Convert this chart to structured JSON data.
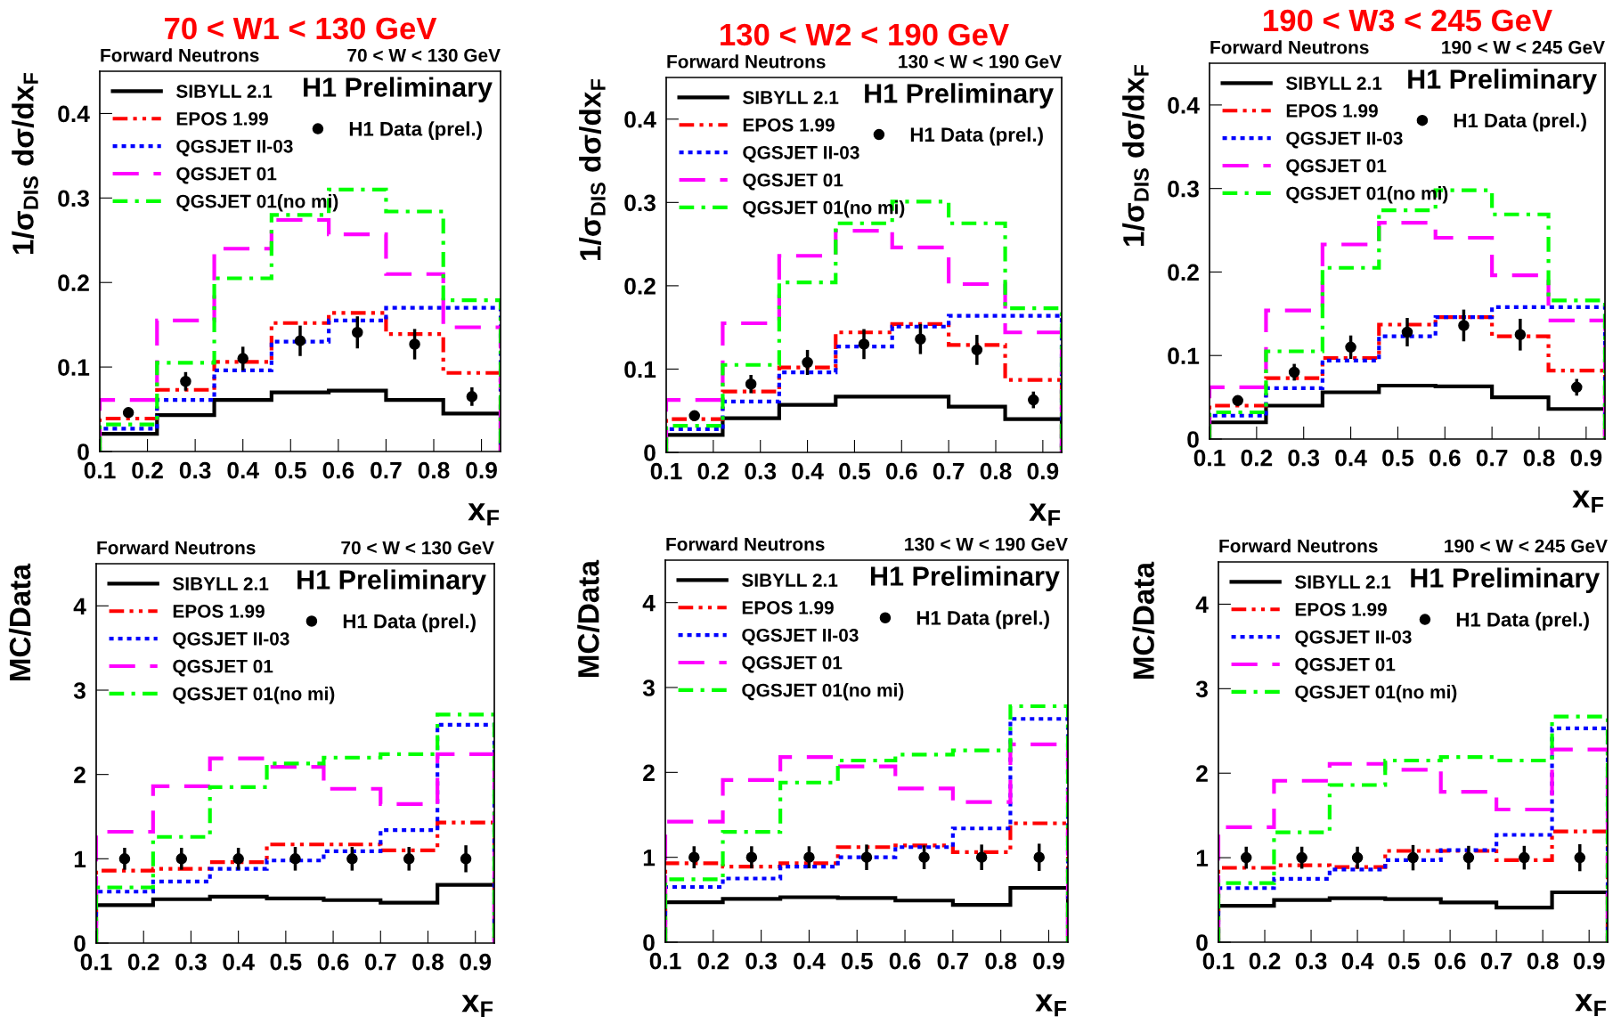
{
  "chart_data": [
    {
      "type": "histogram",
      "title": "70 < W1 < 130 GeV",
      "xlabel": "x$_{F}$",
      "ylabel": "1/σ$_{DIS}$ dσ/dx$_{F}$",
      "annotations": [
        "Forward Neutrons",
        "70 < W < 130 GeV",
        "H1 Preliminary"
      ],
      "bins": [
        0.1,
        0.22,
        0.34,
        0.46,
        0.58,
        0.7,
        0.82,
        0.94
      ],
      "xlim": [
        0.1,
        0.94
      ],
      "xticks": [
        0.1,
        0.2,
        0.3,
        0.4,
        0.5,
        0.6,
        0.7,
        0.8,
        0.9
      ],
      "ylim": [
        0,
        0.45
      ],
      "yticks": [
        0,
        0.1,
        0.2,
        0.3,
        0.4
      ],
      "legend": "top left",
      "series": [
        {
          "name": "SIBYLL 2.1",
          "color": "#000000",
          "line_style": "solid",
          "values": [
            0.021,
            0.043,
            0.061,
            0.07,
            0.072,
            0.061,
            0.045
          ]
        },
        {
          "name": "EPOS 1.99",
          "color": "#ff0000",
          "line_style": "dashdotdot",
          "values": [
            0.039,
            0.073,
            0.106,
            0.152,
            0.164,
            0.139,
            0.093
          ]
        },
        {
          "name": "QGSJET II-03",
          "color": "#0000ff",
          "line_style": "dotted",
          "values": [
            0.027,
            0.061,
            0.096,
            0.13,
            0.155,
            0.17,
            0.17
          ]
        },
        {
          "name": "QGSJET 01",
          "color": "#ff00ff",
          "line_style": "dashed",
          "values": [
            0.061,
            0.155,
            0.24,
            0.274,
            0.257,
            0.21,
            0.147
          ]
        },
        {
          "name": "QGSJET 01(no mi)",
          "color": "#00ff00",
          "line_style": "dashdot",
          "values": [
            0.032,
            0.105,
            0.205,
            0.28,
            0.31,
            0.284,
            0.179
          ]
        },
        {
          "name": "H1 Data (prel.)",
          "type": "scatter",
          "color": "#000000",
          "marker": "circle",
          "x": [
            0.16,
            0.28,
            0.4,
            0.52,
            0.64,
            0.76,
            0.88
          ],
          "values": [
            0.046,
            0.083,
            0.11,
            0.131,
            0.141,
            0.127,
            0.065
          ],
          "errors": [
            0.004,
            0.011,
            0.014,
            0.018,
            0.019,
            0.018,
            0.011
          ]
        }
      ]
    },
    {
      "type": "histogram",
      "title": "130 < W2 < 190 GeV",
      "xlabel": "x$_{F}$",
      "ylabel": "1/σ$_{DIS}$ dσ/dx$_{F}$",
      "annotations": [
        "Forward Neutrons",
        "130 < W < 190 GeV",
        "H1 Preliminary"
      ],
      "bins": [
        0.1,
        0.22,
        0.34,
        0.46,
        0.58,
        0.7,
        0.82,
        0.94
      ],
      "xlim": [
        0.1,
        0.94
      ],
      "xticks": [
        0.1,
        0.2,
        0.3,
        0.4,
        0.5,
        0.6,
        0.7,
        0.8,
        0.9
      ],
      "ylim": [
        0,
        0.45
      ],
      "yticks": [
        0,
        0.1,
        0.2,
        0.3,
        0.4
      ],
      "legend": "top left",
      "series": [
        {
          "name": "SIBYLL 2.1",
          "color": "#000000",
          "line_style": "solid",
          "values": [
            0.021,
            0.041,
            0.057,
            0.067,
            0.067,
            0.055,
            0.04
          ]
        },
        {
          "name": "EPOS 1.99",
          "color": "#ff0000",
          "line_style": "dashdotdot",
          "values": [
            0.04,
            0.073,
            0.102,
            0.144,
            0.154,
            0.129,
            0.087
          ]
        },
        {
          "name": "QGSJET II-03",
          "color": "#0000ff",
          "line_style": "dotted",
          "values": [
            0.028,
            0.061,
            0.096,
            0.127,
            0.151,
            0.164,
            0.164
          ]
        },
        {
          "name": "QGSJET 01",
          "color": "#ff00ff",
          "line_style": "dashed",
          "values": [
            0.063,
            0.155,
            0.236,
            0.266,
            0.246,
            0.202,
            0.144
          ]
        },
        {
          "name": "QGSJET 01(no mi)",
          "color": "#00ff00",
          "line_style": "dashdot",
          "values": [
            0.032,
            0.105,
            0.204,
            0.275,
            0.301,
            0.275,
            0.173
          ]
        },
        {
          "name": "H1 Data (prel.)",
          "type": "scatter",
          "color": "#000000",
          "marker": "circle",
          "x": [
            0.16,
            0.28,
            0.4,
            0.52,
            0.64,
            0.76,
            0.88
          ],
          "values": [
            0.044,
            0.082,
            0.108,
            0.13,
            0.136,
            0.123,
            0.063
          ],
          "errors": [
            0.004,
            0.011,
            0.015,
            0.018,
            0.018,
            0.018,
            0.01
          ]
        }
      ]
    },
    {
      "type": "histogram",
      "title": "190 < W3 < 245 GeV",
      "xlabel": "x$_{F}$",
      "ylabel": "1/σ$_{DIS}$ dσ/dx$_{F}$",
      "annotations": [
        "Forward Neutrons",
        "190 < W < 245 GeV",
        "H1 Preliminary"
      ],
      "bins": [
        0.1,
        0.22,
        0.34,
        0.46,
        0.58,
        0.7,
        0.82,
        0.94
      ],
      "xlim": [
        0.1,
        0.94
      ],
      "xticks": [
        0.1,
        0.2,
        0.3,
        0.4,
        0.5,
        0.6,
        0.7,
        0.8,
        0.9
      ],
      "ylim": [
        0,
        0.45
      ],
      "yticks": [
        0,
        0.1,
        0.2,
        0.3,
        0.4
      ],
      "legend": "top left",
      "series": [
        {
          "name": "SIBYLL 2.1",
          "color": "#000000",
          "line_style": "solid",
          "values": [
            0.02,
            0.04,
            0.056,
            0.064,
            0.063,
            0.05,
            0.036
          ]
        },
        {
          "name": "EPOS 1.99",
          "color": "#ff0000",
          "line_style": "dashdotdot",
          "values": [
            0.04,
            0.073,
            0.097,
            0.137,
            0.146,
            0.123,
            0.082
          ]
        },
        {
          "name": "QGSJET II-03",
          "color": "#0000ff",
          "line_style": "dotted",
          "values": [
            0.028,
            0.061,
            0.094,
            0.123,
            0.146,
            0.158,
            0.158
          ]
        },
        {
          "name": "QGSJET 01",
          "color": "#ff00ff",
          "line_style": "dashed",
          "values": [
            0.062,
            0.154,
            0.233,
            0.259,
            0.241,
            0.196,
            0.142
          ]
        },
        {
          "name": "QGSJET 01(no mi)",
          "color": "#00ff00",
          "line_style": "dashdot",
          "values": [
            0.032,
            0.105,
            0.205,
            0.274,
            0.298,
            0.269,
            0.166
          ]
        },
        {
          "name": "H1 Data (prel.)",
          "type": "scatter",
          "color": "#000000",
          "marker": "circle",
          "x": [
            0.16,
            0.28,
            0.4,
            0.52,
            0.64,
            0.76,
            0.88
          ],
          "values": [
            0.046,
            0.08,
            0.11,
            0.128,
            0.136,
            0.125,
            0.062
          ],
          "errors": [
            0.004,
            0.01,
            0.014,
            0.017,
            0.019,
            0.019,
            0.01
          ]
        }
      ]
    },
    {
      "type": "histogram",
      "xlabel": "x$_{F}$",
      "ylabel": "MC/Data",
      "annotations": [
        "Forward Neutrons",
        "70 < W < 130 GeV",
        "H1 Preliminary"
      ],
      "bins": [
        0.1,
        0.22,
        0.34,
        0.46,
        0.58,
        0.7,
        0.82,
        0.94
      ],
      "xlim": [
        0.1,
        0.94
      ],
      "xticks": [
        0.1,
        0.2,
        0.3,
        0.4,
        0.5,
        0.6,
        0.7,
        0.8,
        0.9
      ],
      "ylim": [
        0,
        4.5
      ],
      "yticks": [
        0,
        1,
        2,
        3,
        4
      ],
      "legend": "top left",
      "series": [
        {
          "name": "SIBYLL 2.1",
          "color": "#000000",
          "line_style": "solid",
          "values": [
            0.45,
            0.52,
            0.55,
            0.53,
            0.51,
            0.48,
            0.69
          ]
        },
        {
          "name": "EPOS 1.99",
          "color": "#ff0000",
          "line_style": "dashdotdot",
          "values": [
            0.86,
            0.88,
            0.96,
            1.17,
            1.17,
            1.1,
            1.43
          ]
        },
        {
          "name": "QGSJET II-03",
          "color": "#0000ff",
          "line_style": "dotted",
          "values": [
            0.61,
            0.73,
            0.88,
            0.98,
            1.09,
            1.34,
            2.59
          ]
        },
        {
          "name": "QGSJET 01",
          "color": "#ff00ff",
          "line_style": "dashed",
          "values": [
            1.32,
            1.86,
            2.19,
            2.09,
            1.83,
            1.65,
            2.24
          ]
        },
        {
          "name": "QGSJET 01(no mi)",
          "color": "#00ff00",
          "line_style": "dashdot",
          "values": [
            0.66,
            1.26,
            1.85,
            2.13,
            2.2,
            2.24,
            2.71
          ]
        },
        {
          "name": "H1 Data (prel.)",
          "type": "scatter",
          "color": "#000000",
          "marker": "circle",
          "x": [
            0.16,
            0.28,
            0.4,
            0.52,
            0.64,
            0.76,
            0.88
          ],
          "values": [
            1,
            1,
            1,
            1,
            1,
            1,
            1
          ],
          "errors": [
            0.13,
            0.13,
            0.13,
            0.14,
            0.14,
            0.14,
            0.16
          ]
        }
      ]
    },
    {
      "type": "histogram",
      "xlabel": "x$_{F}$",
      "ylabel": "MC/Data",
      "annotations": [
        "Forward Neutrons",
        "130 < W < 190 GeV",
        "H1 Preliminary"
      ],
      "bins": [
        0.1,
        0.22,
        0.34,
        0.46,
        0.58,
        0.7,
        0.82,
        0.94
      ],
      "xlim": [
        0.1,
        0.94
      ],
      "xticks": [
        0.1,
        0.2,
        0.3,
        0.4,
        0.5,
        0.6,
        0.7,
        0.8,
        0.9
      ],
      "ylim": [
        0,
        4.5
      ],
      "yticks": [
        0,
        1,
        2,
        3,
        4
      ],
      "legend": "top left",
      "series": [
        {
          "name": "SIBYLL 2.1",
          "color": "#000000",
          "line_style": "solid",
          "values": [
            0.47,
            0.51,
            0.53,
            0.52,
            0.49,
            0.44,
            0.64
          ]
        },
        {
          "name": "EPOS 1.99",
          "color": "#ff0000",
          "line_style": "dashdotdot",
          "values": [
            0.93,
            0.89,
            0.93,
            1.12,
            1.14,
            1.06,
            1.4
          ]
        },
        {
          "name": "QGSJET II-03",
          "color": "#0000ff",
          "line_style": "dotted",
          "values": [
            0.65,
            0.75,
            0.89,
            1.0,
            1.12,
            1.34,
            2.63
          ]
        },
        {
          "name": "QGSJET 01",
          "color": "#ff00ff",
          "line_style": "dashed",
          "values": [
            1.42,
            1.91,
            2.18,
            2.07,
            1.81,
            1.65,
            2.33
          ]
        },
        {
          "name": "QGSJET 01(no mi)",
          "color": "#00ff00",
          "line_style": "dashdot",
          "values": [
            0.74,
            1.3,
            1.88,
            2.14,
            2.21,
            2.26,
            2.78
          ]
        },
        {
          "name": "H1 Data (prel.)",
          "type": "scatter",
          "color": "#000000",
          "marker": "circle",
          "x": [
            0.16,
            0.28,
            0.4,
            0.52,
            0.64,
            0.76,
            0.88
          ],
          "values": [
            1,
            1,
            1,
            1,
            1,
            1,
            1
          ],
          "errors": [
            0.13,
            0.13,
            0.13,
            0.15,
            0.14,
            0.15,
            0.16
          ]
        }
      ]
    },
    {
      "type": "histogram",
      "xlabel": "x$_{F}$",
      "ylabel": "MC/Data",
      "annotations": [
        "Forward Neutrons",
        "190 < W < 245 GeV",
        "H1 Preliminary"
      ],
      "bins": [
        0.1,
        0.22,
        0.34,
        0.46,
        0.58,
        0.7,
        0.82,
        0.94
      ],
      "xlim": [
        0.1,
        0.94
      ],
      "xticks": [
        0.1,
        0.2,
        0.3,
        0.4,
        0.5,
        0.6,
        0.7,
        0.8,
        0.9
      ],
      "ylim": [
        0,
        4.5
      ],
      "yticks": [
        0,
        1,
        2,
        3,
        4
      ],
      "legend": "top left",
      "series": [
        {
          "name": "SIBYLL 2.1",
          "color": "#000000",
          "line_style": "solid",
          "values": [
            0.43,
            0.5,
            0.52,
            0.51,
            0.47,
            0.41,
            0.59
          ]
        },
        {
          "name": "EPOS 1.99",
          "color": "#ff0000",
          "line_style": "dashdotdot",
          "values": [
            0.88,
            0.91,
            0.89,
            1.08,
            1.08,
            0.97,
            1.31
          ]
        },
        {
          "name": "QGSJET II-03",
          "color": "#0000ff",
          "line_style": "dotted",
          "values": [
            0.64,
            0.75,
            0.86,
            0.97,
            1.09,
            1.27,
            2.53
          ]
        },
        {
          "name": "QGSJET 01",
          "color": "#ff00ff",
          "line_style": "dashed",
          "values": [
            1.36,
            1.91,
            2.11,
            2.04,
            1.78,
            1.57,
            2.28
          ]
        },
        {
          "name": "QGSJET 01(no mi)",
          "color": "#00ff00",
          "line_style": "dashdot",
          "values": [
            0.7,
            1.3,
            1.86,
            2.15,
            2.19,
            2.15,
            2.67
          ]
        },
        {
          "name": "H1 Data (prel.)",
          "type": "scatter",
          "color": "#000000",
          "marker": "circle",
          "x": [
            0.16,
            0.28,
            0.4,
            0.52,
            0.64,
            0.76,
            0.88
          ],
          "values": [
            1,
            1,
            1,
            1,
            1,
            1,
            1
          ],
          "errors": [
            0.13,
            0.13,
            0.13,
            0.15,
            0.14,
            0.14,
            0.16
          ]
        }
      ]
    }
  ]
}
